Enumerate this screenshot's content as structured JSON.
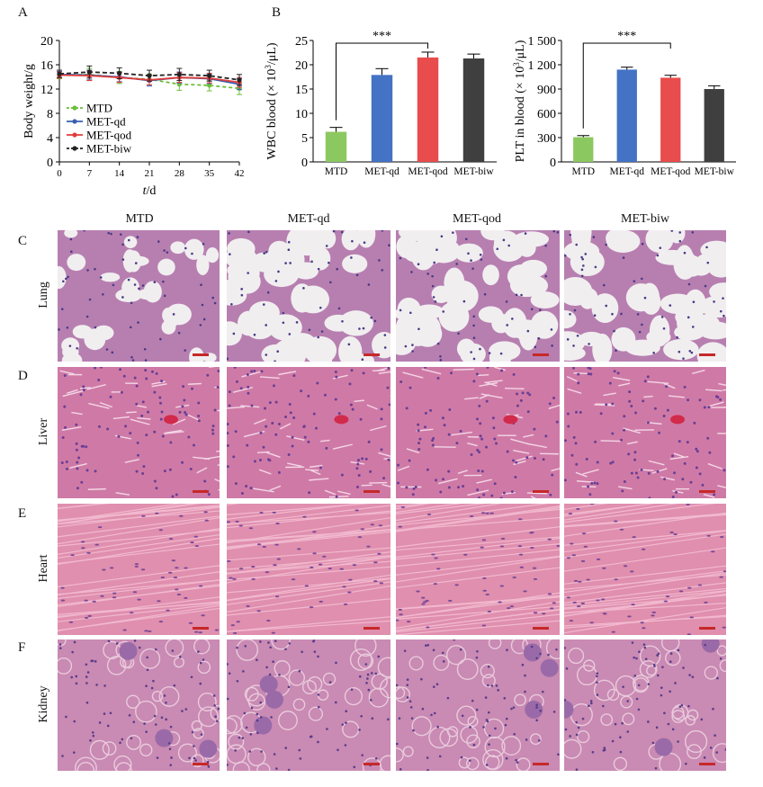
{
  "panel_letters": {
    "A": "A",
    "B": "B",
    "C": "C",
    "D": "D",
    "E": "E",
    "F": "F"
  },
  "chart_data": [
    {
      "type": "line",
      "panel": "A",
      "xlabel": "t/d",
      "ylabel": "Body weight/g",
      "x": [
        0,
        7,
        14,
        21,
        28,
        35,
        42
      ],
      "xlim": [
        0,
        42
      ],
      "ylim": [
        0,
        20
      ],
      "yticks": [
        0,
        4,
        8,
        12,
        16,
        20
      ],
      "legend_position": "bottom-left",
      "series": [
        {
          "name": "MTD",
          "color": "#6bbf3a",
          "dash": "4,3",
          "values": [
            14.3,
            14.4,
            13.9,
            13.6,
            12.8,
            12.6,
            12.1
          ],
          "err": [
            0.6,
            1.0,
            1.0,
            0.9,
            1.0,
            0.9,
            1.0
          ]
        },
        {
          "name": "MET-qd",
          "color": "#3a5fb0",
          "dash": "",
          "values": [
            14.4,
            14.3,
            14.0,
            13.4,
            13.9,
            13.7,
            12.8
          ],
          "err": [
            0.5,
            0.8,
            0.8,
            0.9,
            0.9,
            0.8,
            0.9
          ]
        },
        {
          "name": "MET-qod",
          "color": "#e03c3c",
          "dash": "",
          "values": [
            14.3,
            14.2,
            13.9,
            13.5,
            13.9,
            13.8,
            13.1
          ],
          "err": [
            0.5,
            0.8,
            0.8,
            0.8,
            0.8,
            0.8,
            0.8
          ]
        },
        {
          "name": "MET-biw",
          "color": "#222222",
          "dash": "5,3",
          "values": [
            14.5,
            14.8,
            14.6,
            14.2,
            14.4,
            14.2,
            13.5
          ],
          "err": [
            0.6,
            1.0,
            0.9,
            0.9,
            1.0,
            0.9,
            0.9
          ]
        }
      ]
    },
    {
      "type": "bar",
      "panel": "B-left",
      "ylabel": "WBC blood (×10³/μL)",
      "ylabel_parts": {
        "pre": "WBC blood (",
        "times": "×",
        "base": "10",
        "sup": "3",
        "post": "/μL)"
      },
      "categories": [
        "MTD",
        "MET-qd",
        "MET-qod",
        "MET-biw"
      ],
      "values": [
        6.2,
        17.9,
        21.5,
        21.3
      ],
      "err": [
        0.9,
        1.3,
        1.1,
        0.9
      ],
      "colors": [
        "#8cc860",
        "#4472c4",
        "#e84c4c",
        "#3f3f3f"
      ],
      "ylim": [
        0,
        25
      ],
      "yticks": [
        0,
        5,
        10,
        15,
        20,
        25
      ],
      "significance": {
        "label": "***",
        "from": 0,
        "to": 2
      }
    },
    {
      "type": "bar",
      "panel": "B-right",
      "ylabel": "PLT in blood (×10³/μL)",
      "ylabel_parts": {
        "pre": "PLT in blood (",
        "times": "×",
        "base": "10",
        "sup": "3",
        "post": "/μL)"
      },
      "categories": [
        "MTD",
        "MET-qd",
        "MET-qod",
        "MET-biw"
      ],
      "values": [
        305,
        1140,
        1040,
        900
      ],
      "err": [
        20,
        30,
        30,
        40
      ],
      "colors": [
        "#8cc860",
        "#4472c4",
        "#e84c4c",
        "#3f3f3f"
      ],
      "ylim": [
        0,
        1500
      ],
      "yticks": [
        0,
        300,
        600,
        900,
        1200,
        1500
      ],
      "ytick_labels": [
        "0",
        "300",
        "600",
        "900",
        "1 200",
        "1 500"
      ],
      "significance": {
        "label": "***",
        "from": 0,
        "to": 2
      }
    }
  ],
  "histology": {
    "columns": [
      "MTD",
      "MET-qd",
      "MET-qod",
      "MET-biw"
    ],
    "rows": [
      {
        "letter": "C",
        "label": "Lung",
        "style": "lung"
      },
      {
        "letter": "D",
        "label": "Liver",
        "style": "liver"
      },
      {
        "letter": "E",
        "label": "Heart",
        "style": "heart"
      },
      {
        "letter": "F",
        "label": "Kidney",
        "style": "kidney"
      }
    ]
  }
}
